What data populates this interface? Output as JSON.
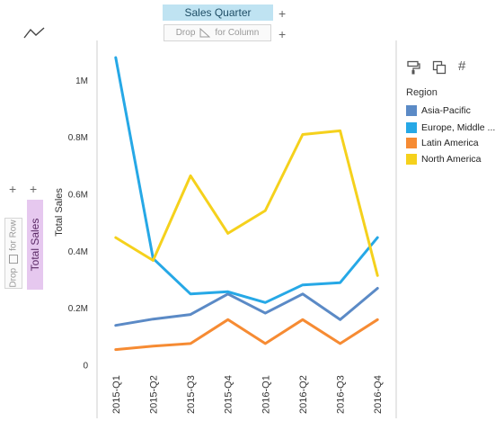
{
  "shelves": {
    "column_pill": "Sales Quarter",
    "column_drop": {
      "left": "Drop",
      "right": "for Column"
    },
    "row_pill": "Total Sales",
    "row_drop": {
      "left": "Drop",
      "right": "for Row"
    },
    "add_symbol": "+"
  },
  "icons": {
    "chart_type": "line-chart-icon",
    "format": "paint-roller-icon",
    "copy": "copy-icon",
    "number": "#"
  },
  "chart_data": {
    "type": "line",
    "categories": [
      "2015-Q1",
      "2015-Q2",
      "2015-Q3",
      "2015-Q4",
      "2016-Q1",
      "2016-Q2",
      "2016-Q3",
      "2016-Q4"
    ],
    "ylabel": "Total Sales",
    "xlabel": "",
    "ylim": [
      0,
      1080000
    ],
    "yticks": [
      0,
      200000,
      400000,
      600000,
      800000,
      1000000
    ],
    "ytick_labels": [
      "0",
      "0.2M",
      "0.4M",
      "0.6M",
      "0.8M",
      "1M"
    ],
    "grid": false,
    "legend_position": "right",
    "legend_title": "Region",
    "series": [
      {
        "name": "Asia-Pacific",
        "color": "#5b8ac6",
        "values": [
          140000,
          162000,
          178000,
          250000,
          183000,
          250000,
          160000,
          270000
        ]
      },
      {
        "name": "Europe, Middle ...",
        "color": "#26a8e6",
        "values": [
          1080000,
          375000,
          250000,
          258000,
          220000,
          282000,
          290000,
          448000
        ]
      },
      {
        "name": "Latin America",
        "color": "#f68b33",
        "values": [
          55000,
          67000,
          76000,
          160000,
          76000,
          160000,
          76000,
          160000
        ]
      },
      {
        "name": "North America",
        "color": "#f5d11c",
        "values": [
          448000,
          368000,
          665000,
          463000,
          543000,
          810000,
          823000,
          315000
        ]
      }
    ]
  }
}
